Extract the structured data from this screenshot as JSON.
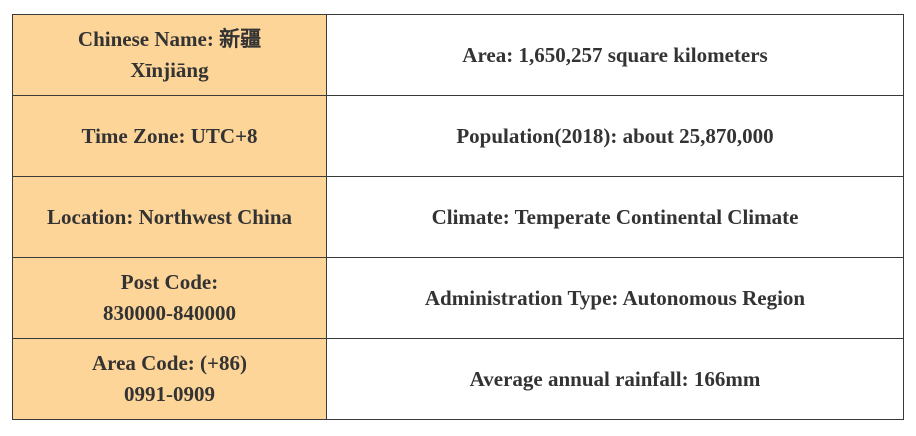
{
  "table": {
    "rows": [
      [
        [
          "Chinese Name: 新疆",
          "Xīnjiāng"
        ],
        [
          "Area: 1,650,257 square kilometers"
        ]
      ],
      [
        [
          "Time Zone: UTC+8"
        ],
        [
          "Population(2018): about 25,870,000"
        ]
      ],
      [
        [
          "Location: Northwest China"
        ],
        [
          "Climate: Temperate Continental Climate"
        ]
      ],
      [
        [
          "Post Code:",
          "830000-840000"
        ],
        [
          "Administration Type: Autonomous Region"
        ]
      ],
      [
        [
          "Area Code: (+86)",
          "0991-0909"
        ],
        [
          "Average annual rainfall: 166mm"
        ]
      ]
    ]
  }
}
